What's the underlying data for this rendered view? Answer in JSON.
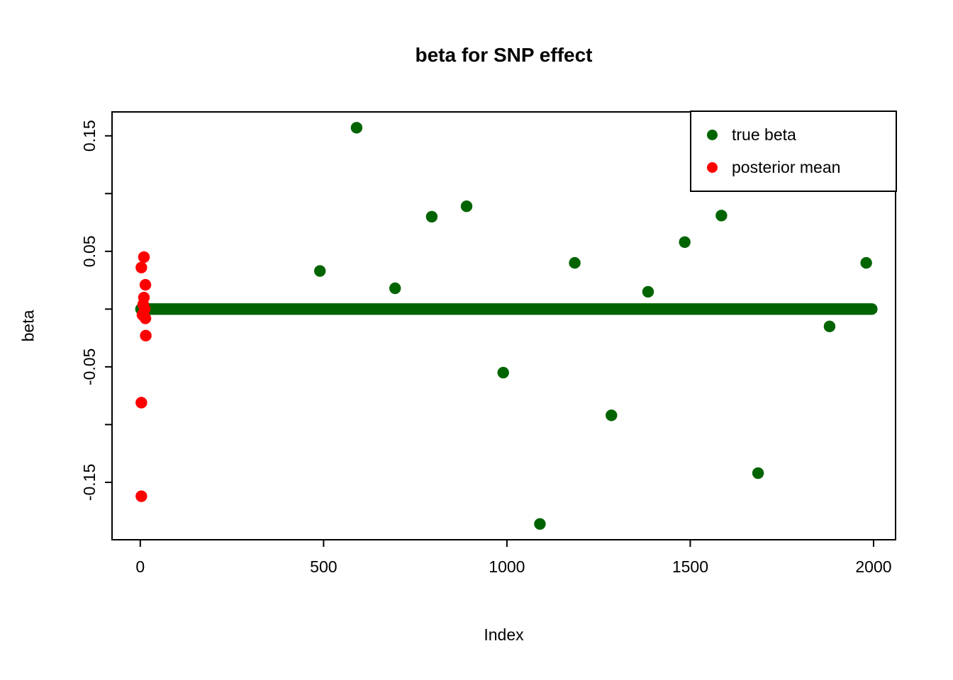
{
  "title": "beta for SNP effect",
  "x_axis_label": "Index",
  "y_axis_label": "beta",
  "legend": {
    "position": "topright",
    "items": [
      {
        "label": "true beta",
        "color": "#006400"
      },
      {
        "label": "posterior mean",
        "color": "#ff0000"
      }
    ]
  },
  "chart_data": {
    "type": "scatter",
    "title": "beta for SNP effect",
    "xlabel": "Index",
    "ylabel": "beta",
    "xlim": [
      -77,
      2060
    ],
    "ylim": [
      -0.1997,
      0.1707
    ],
    "grid": false,
    "x_ticks": [
      0,
      500,
      1000,
      1500,
      2000
    ],
    "x_tick_labels": [
      "0",
      "500",
      "1000",
      "1500",
      "2000"
    ],
    "y_ticks": [
      -0.15,
      -0.1,
      -0.05,
      0,
      0.05,
      0.1,
      0.15
    ],
    "y_tick_labels": [
      "-0.15",
      "",
      "-0.05",
      "",
      "0.05",
      "",
      "0.15"
    ],
    "point_radius_px": 8.2,
    "series": [
      {
        "name": "true beta",
        "color": "#006400",
        "points": [
          [
            490,
            0.033
          ],
          [
            590,
            0.157
          ],
          [
            695,
            0.018
          ],
          [
            795,
            0.08
          ],
          [
            890,
            0.089
          ],
          [
            990,
            -0.055
          ],
          [
            1090,
            -0.186
          ],
          [
            1185,
            0.04
          ],
          [
            1285,
            -0.092
          ],
          [
            1385,
            0.015
          ],
          [
            1485,
            0.058
          ],
          [
            1585,
            0.081
          ],
          [
            1685,
            -0.142
          ],
          [
            1880,
            -0.015
          ],
          [
            1980,
            0.04
          ]
        ],
        "zero_run": {
          "y": 0,
          "x_start": 2,
          "x_end": 1995,
          "description": "dense run of overlapping points at beta = 0 spanning index 0 to ~2000, drawn as a thick round-capped bar"
        }
      },
      {
        "name": "posterior mean",
        "color": "#ff0000",
        "points": [
          [
            10,
            0.045
          ],
          [
            3,
            0.036
          ],
          [
            14,
            0.021
          ],
          [
            10,
            0.01
          ],
          [
            8,
            0.004
          ],
          [
            12,
            0.0
          ],
          [
            6,
            -0.005
          ],
          [
            14,
            -0.008
          ],
          [
            15,
            -0.023
          ],
          [
            3,
            -0.081
          ],
          [
            3,
            -0.162
          ]
        ]
      }
    ]
  }
}
